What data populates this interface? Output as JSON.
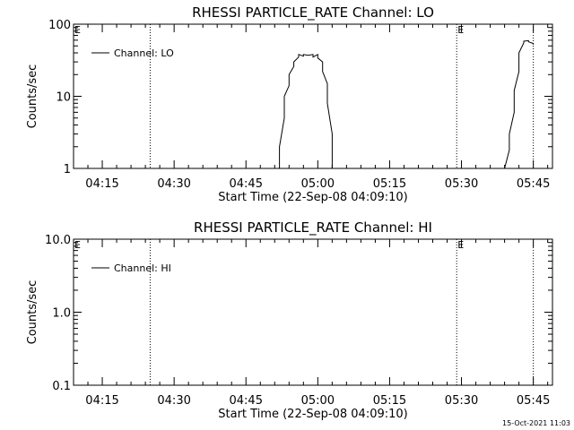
{
  "footer_timestamp": "15-Oct-2021 11:03",
  "chart_data": [
    {
      "type": "line",
      "title": "RHESSI PARTICLE_RATE Channel: LO",
      "xlabel": "Start Time (22-Sep-08 04:09:10)",
      "ylabel": "Counts/sec",
      "y_scale": "log",
      "ylim": [
        1,
        100
      ],
      "y_ticks": [
        1,
        10,
        100
      ],
      "y_tick_labels": [
        "1",
        "10",
        "100"
      ],
      "xlim": [
        "04:09",
        "05:49"
      ],
      "x_ticks": [
        "04:15",
        "04:30",
        "04:45",
        "05:00",
        "05:15",
        "05:30",
        "05:45"
      ],
      "x_tick_labels": [
        "04:15",
        "04:30",
        "04:45",
        "05:00",
        "05:15",
        "05:30",
        "05:45"
      ],
      "legend": "top-left",
      "series": [
        {
          "name": "Channel: LO",
          "segments": [
            [
              {
                "x": "04:52",
                "y": 1.0
              },
              {
                "x": "04:52",
                "y": 2.0
              },
              {
                "x": "04:53",
                "y": 5.0
              },
              {
                "x": "04:53",
                "y": 10.0
              },
              {
                "x": "04:54",
                "y": 14.0
              },
              {
                "x": "04:54",
                "y": 20.0
              },
              {
                "x": "04:55",
                "y": 26.0
              },
              {
                "x": "04:55",
                "y": 30.0
              },
              {
                "x": "04:56",
                "y": 35.0
              },
              {
                "x": "04:56",
                "y": 38.0
              },
              {
                "x": "04:57",
                "y": 36.0
              },
              {
                "x": "04:57",
                "y": 38.0
              },
              {
                "x": "04:58",
                "y": 37.0
              },
              {
                "x": "04:59",
                "y": 38.0
              },
              {
                "x": "04:59",
                "y": 35.0
              },
              {
                "x": "05:00",
                "y": 38.0
              },
              {
                "x": "05:00",
                "y": 34.0
              },
              {
                "x": "05:01",
                "y": 30.0
              },
              {
                "x": "05:01",
                "y": 22.0
              },
              {
                "x": "05:02",
                "y": 15.0
              },
              {
                "x": "05:02",
                "y": 8.0
              },
              {
                "x": "05:03",
                "y": 3.0
              },
              {
                "x": "05:03",
                "y": 1.0
              }
            ],
            [
              {
                "x": "05:39",
                "y": 1.0
              },
              {
                "x": "05:40",
                "y": 1.8
              },
              {
                "x": "05:40",
                "y": 3.0
              },
              {
                "x": "05:41",
                "y": 6.0
              },
              {
                "x": "05:41",
                "y": 12.0
              },
              {
                "x": "05:42",
                "y": 22.0
              },
              {
                "x": "05:42",
                "y": 40.0
              },
              {
                "x": "05:43",
                "y": 55.0
              },
              {
                "x": "05:43",
                "y": 58.0
              },
              {
                "x": "05:44",
                "y": 59.0
              },
              {
                "x": "05:44",
                "y": 57.0
              },
              {
                "x": "05:45",
                "y": 54.0
              },
              {
                "x": "05:45",
                "y": 52.0
              }
            ]
          ]
        }
      ],
      "markers": [
        {
          "x": "04:25",
          "label": ""
        },
        {
          "x": "05:29",
          "label": "E"
        },
        {
          "x": "05:45",
          "label": ""
        }
      ],
      "corner_marker": "E"
    },
    {
      "type": "line",
      "title": "RHESSI PARTICLE_RATE Channel: HI",
      "xlabel": "Start Time (22-Sep-08 04:09:10)",
      "ylabel": "Counts/sec",
      "y_scale": "log",
      "ylim": [
        0.1,
        10
      ],
      "y_ticks": [
        0.1,
        1,
        10
      ],
      "y_tick_labels": [
        "0.1",
        "1.0",
        "10.0"
      ],
      "xlim": [
        "04:09",
        "05:49"
      ],
      "x_ticks": [
        "04:15",
        "04:30",
        "04:45",
        "05:00",
        "05:15",
        "05:30",
        "05:45"
      ],
      "x_tick_labels": [
        "04:15",
        "04:30",
        "04:45",
        "05:00",
        "05:15",
        "05:30",
        "05:45"
      ],
      "legend": "top-left",
      "series": [
        {
          "name": "Channel: HI",
          "segments": []
        }
      ],
      "markers": [
        {
          "x": "04:25",
          "label": ""
        },
        {
          "x": "05:29",
          "label": "E"
        },
        {
          "x": "05:45",
          "label": ""
        }
      ],
      "corner_marker": "E"
    }
  ]
}
